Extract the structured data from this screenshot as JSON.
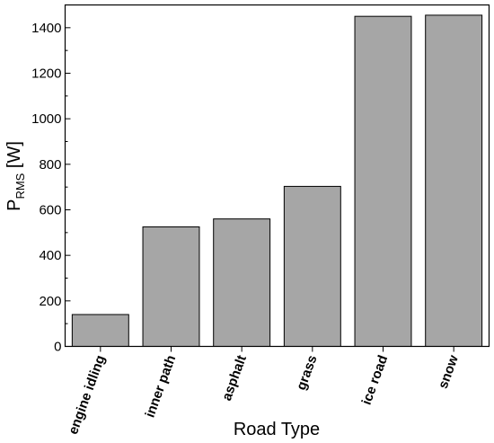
{
  "chart_data": {
    "type": "bar",
    "categories": [
      "engine idling",
      "inner path",
      "asphalt",
      "grass",
      "ice road",
      "snow"
    ],
    "values": [
      140,
      525,
      560,
      703,
      1450,
      1455
    ],
    "xlabel": "Road Type",
    "ylabel": {
      "main": "P",
      "sub": "RMS",
      "unit": " [W]"
    },
    "ylim": [
      0,
      1500
    ],
    "yticks": [
      0,
      200,
      400,
      600,
      800,
      1000,
      1200,
      1400
    ],
    "grid": false,
    "bar_color": "#a6a6a6"
  }
}
